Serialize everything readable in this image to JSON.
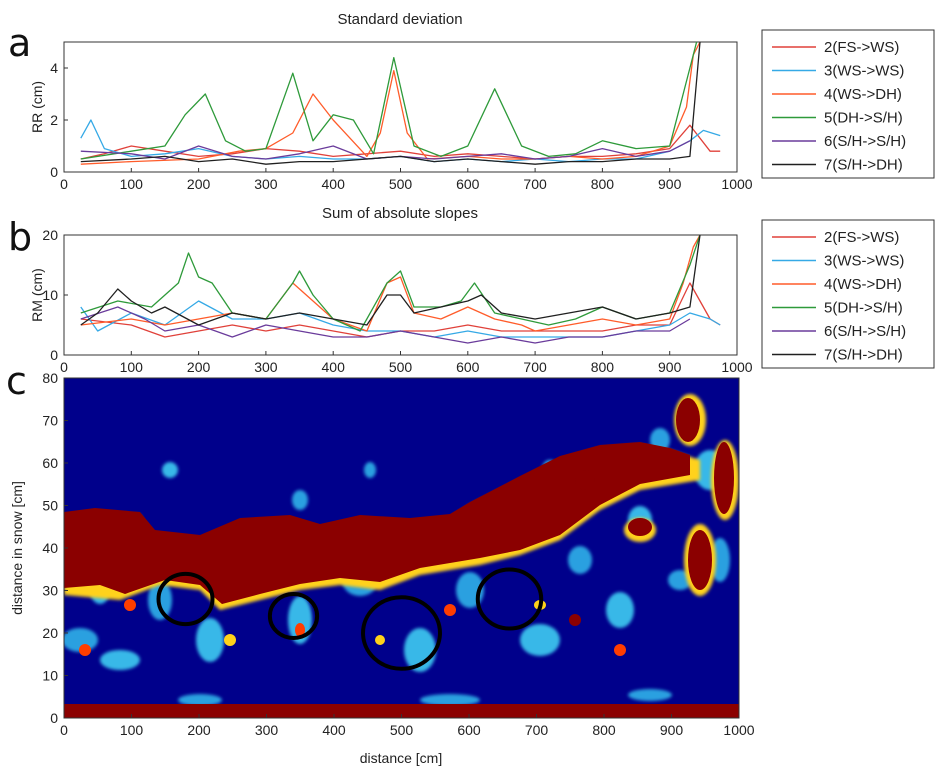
{
  "colors": {
    "s2": "#e0413a",
    "s3": "#35a9e6",
    "s4": "#ff5c2a",
    "s5": "#2e9a3a",
    "s6": "#6a3b9b",
    "s7": "#202020",
    "heat_background": "#00008b",
    "heat_band": "#8b0000"
  },
  "chart_data": [
    {
      "id": "a",
      "type": "line",
      "panel_label": "a",
      "title": "Standard deviation",
      "xlabel": "",
      "ylabel": "RR (cm)",
      "xlim": [
        0,
        1000
      ],
      "ylim": [
        0,
        5
      ],
      "xticks": [
        "0",
        "100",
        "200",
        "300",
        "400",
        "500",
        "600",
        "700",
        "800",
        "900",
        "1000"
      ],
      "yticks": [
        "0",
        "2",
        "4"
      ],
      "legend_position": "right",
      "series": [
        {
          "name": "2(FS->WS)",
          "color_key": "s2",
          "x": [
            25,
            60,
            100,
            150,
            200,
            250,
            300,
            350,
            400,
            450,
            500,
            550,
            600,
            650,
            700,
            750,
            800,
            850,
            900,
            930,
            960,
            975
          ],
          "y": [
            0.5,
            0.7,
            1.0,
            0.8,
            0.6,
            0.7,
            0.9,
            0.8,
            0.6,
            0.7,
            0.8,
            0.6,
            0.7,
            0.6,
            0.5,
            0.6,
            0.6,
            0.7,
            0.9,
            1.8,
            0.8,
            0.8
          ]
        },
        {
          "name": "3(WS->WS)",
          "color_key": "s3",
          "x": [
            25,
            40,
            60,
            100,
            150,
            200,
            250,
            300,
            350,
            400,
            450,
            500,
            550,
            600,
            650,
            700,
            750,
            800,
            850,
            900,
            930,
            950,
            975
          ],
          "y": [
            1.3,
            2.0,
            0.9,
            0.6,
            0.7,
            0.9,
            0.6,
            0.5,
            0.6,
            0.5,
            0.5,
            0.6,
            0.4,
            0.5,
            0.4,
            0.5,
            0.4,
            0.5,
            0.5,
            0.8,
            1.2,
            1.6,
            1.4
          ]
        },
        {
          "name": "4(WS->DH)",
          "color_key": "s4",
          "x": [
            25,
            100,
            200,
            260,
            300,
            340,
            370,
            400,
            450,
            470,
            490,
            510,
            540,
            600,
            650,
            700,
            750,
            800,
            850,
            900,
            925,
            935,
            945
          ],
          "y": [
            0.3,
            0.4,
            0.5,
            0.8,
            0.9,
            1.5,
            3.0,
            2.0,
            0.6,
            1.5,
            3.9,
            1.5,
            0.5,
            0.6,
            0.5,
            0.5,
            0.6,
            0.5,
            0.6,
            1.0,
            2.5,
            4.5,
            5.0
          ]
        },
        {
          "name": "5(DH->S/H)",
          "color_key": "s5",
          "x": [
            25,
            100,
            150,
            180,
            210,
            240,
            270,
            300,
            340,
            370,
            400,
            430,
            460,
            490,
            520,
            560,
            600,
            640,
            680,
            720,
            760,
            800,
            850,
            900,
            930,
            940
          ],
          "y": [
            0.5,
            0.8,
            1.0,
            2.2,
            3.0,
            1.2,
            0.8,
            0.9,
            3.8,
            1.2,
            2.2,
            2.0,
            0.7,
            4.4,
            1.0,
            0.6,
            1.0,
            3.2,
            1.0,
            0.6,
            0.7,
            1.2,
            0.9,
            1.0,
            4.0,
            5.0
          ]
        },
        {
          "name": "6(S/H->S/H)",
          "color_key": "s6",
          "x": [
            25,
            100,
            150,
            200,
            250,
            300,
            350,
            400,
            450,
            500,
            550,
            600,
            650,
            700,
            750,
            800,
            850,
            900,
            930
          ],
          "y": [
            0.8,
            0.7,
            0.5,
            1.0,
            0.6,
            0.5,
            0.7,
            1.0,
            0.5,
            0.6,
            0.5,
            0.6,
            0.7,
            0.5,
            0.6,
            0.9,
            0.6,
            0.8,
            1.2
          ]
        },
        {
          "name": "7(S/H->DH)",
          "color_key": "s7",
          "x": [
            25,
            100,
            150,
            200,
            250,
            300,
            350,
            400,
            450,
            500,
            550,
            600,
            650,
            700,
            750,
            800,
            850,
            900,
            930,
            945
          ],
          "y": [
            0.4,
            0.5,
            0.6,
            0.4,
            0.5,
            0.3,
            0.4,
            0.4,
            0.5,
            0.6,
            0.4,
            0.5,
            0.4,
            0.3,
            0.4,
            0.4,
            0.5,
            0.5,
            0.6,
            5.0
          ]
        }
      ]
    },
    {
      "id": "b",
      "type": "line",
      "panel_label": "b",
      "title": "Sum of absolute slopes",
      "xlabel": "",
      "ylabel": "RM (cm)",
      "xlim": [
        0,
        1000
      ],
      "ylim": [
        0,
        20
      ],
      "xticks": [
        "0",
        "100",
        "200",
        "300",
        "400",
        "500",
        "600",
        "700",
        "800",
        "900",
        "1000"
      ],
      "yticks": [
        "0",
        "10",
        "20"
      ],
      "legend_position": "right",
      "series": [
        {
          "name": "2(FS->WS)",
          "color_key": "s2",
          "x": [
            25,
            100,
            150,
            200,
            250,
            300,
            350,
            400,
            450,
            500,
            550,
            600,
            650,
            700,
            750,
            800,
            850,
            900,
            930,
            960,
            975
          ],
          "y": [
            6,
            5,
            3,
            4,
            5,
            4,
            5,
            4,
            3,
            4,
            4,
            5,
            4,
            4,
            4,
            4,
            5,
            5,
            12,
            6,
            5
          ]
        },
        {
          "name": "3(WS->WS)",
          "color_key": "s3",
          "x": [
            25,
            50,
            100,
            150,
            200,
            250,
            300,
            350,
            400,
            450,
            500,
            550,
            600,
            650,
            700,
            750,
            800,
            850,
            900,
            930,
            960,
            975
          ],
          "y": [
            8,
            4,
            7,
            5,
            9,
            6,
            6,
            7,
            5,
            4,
            4,
            3,
            4,
            3,
            3,
            3,
            3,
            4,
            5,
            7,
            6,
            5
          ]
        },
        {
          "name": "4(WS->DH)",
          "color_key": "s4",
          "x": [
            25,
            100,
            150,
            200,
            250,
            300,
            340,
            370,
            400,
            450,
            480,
            500,
            520,
            560,
            600,
            640,
            680,
            700,
            750,
            800,
            850,
            900,
            920,
            935,
            945
          ],
          "y": [
            5,
            6,
            5,
            6,
            7,
            6,
            12,
            9,
            6,
            4,
            12,
            13,
            7,
            6,
            8,
            6,
            5,
            4,
            5,
            6,
            5,
            6,
            12,
            18,
            20
          ]
        },
        {
          "name": "5(DH->S/H)",
          "color_key": "s5",
          "x": [
            25,
            80,
            130,
            170,
            185,
            200,
            220,
            250,
            300,
            340,
            350,
            370,
            400,
            440,
            480,
            500,
            520,
            560,
            590,
            610,
            640,
            680,
            720,
            760,
            800,
            850,
            900,
            930,
            945
          ],
          "y": [
            7,
            9,
            8,
            12,
            17,
            13,
            12,
            7,
            6,
            12,
            14,
            10,
            6,
            4,
            12,
            14,
            8,
            8,
            9,
            12,
            7,
            6,
            5,
            6,
            8,
            6,
            7,
            15,
            20
          ]
        },
        {
          "name": "6(S/H->S/H)",
          "color_key": "s6",
          "x": [
            25,
            80,
            120,
            150,
            200,
            250,
            300,
            350,
            400,
            450,
            500,
            550,
            600,
            650,
            700,
            750,
            800,
            850,
            900,
            930
          ],
          "y": [
            6,
            8,
            6,
            4,
            5,
            3,
            5,
            4,
            3,
            3,
            4,
            3,
            2,
            3,
            2,
            3,
            3,
            4,
            4,
            6
          ]
        },
        {
          "name": "7(S/H->DH)",
          "color_key": "s7",
          "x": [
            25,
            50,
            80,
            100,
            130,
            150,
            200,
            250,
            300,
            350,
            400,
            450,
            480,
            500,
            520,
            560,
            600,
            620,
            650,
            700,
            750,
            800,
            850,
            900,
            930,
            945
          ],
          "y": [
            5,
            7,
            11,
            9,
            7,
            8,
            5,
            7,
            6,
            7,
            6,
            5,
            10,
            10,
            7,
            8,
            9,
            10,
            7,
            6,
            7,
            8,
            6,
            7,
            8,
            20
          ]
        }
      ]
    },
    {
      "id": "c",
      "type": "heatmap",
      "panel_label": "c",
      "title": "",
      "xlabel": "distance [cm]",
      "ylabel": "distance in snow [cm]",
      "xlim": [
        0,
        1000
      ],
      "ylim": [
        0,
        80
      ],
      "xticks": [
        "0",
        "100",
        "200",
        "300",
        "400",
        "500",
        "600",
        "700",
        "800",
        "900",
        "1000"
      ],
      "yticks": [
        "0",
        "10",
        "20",
        "30",
        "40",
        "50",
        "60",
        "70",
        "80"
      ],
      "circles": [
        {
          "x": 180,
          "y": 28,
          "r": 40
        },
        {
          "x": 340,
          "y": 24,
          "r": 35
        },
        {
          "x": 500,
          "y": 20,
          "r": 57
        },
        {
          "x": 660,
          "y": 28,
          "r": 47
        }
      ]
    }
  ],
  "legends": {
    "a": [
      "2(FS->WS)",
      "3(WS->WS)",
      "4(WS->DH)",
      "5(DH->S/H)",
      "6(S/H->S/H)",
      "7(S/H->DH)"
    ],
    "b": [
      "2(FS->WS)",
      "3(WS->WS)",
      "4(WS->DH)",
      "5(DH->S/H)",
      "6(S/H->S/H)",
      "7(S/H->DH)"
    ]
  }
}
